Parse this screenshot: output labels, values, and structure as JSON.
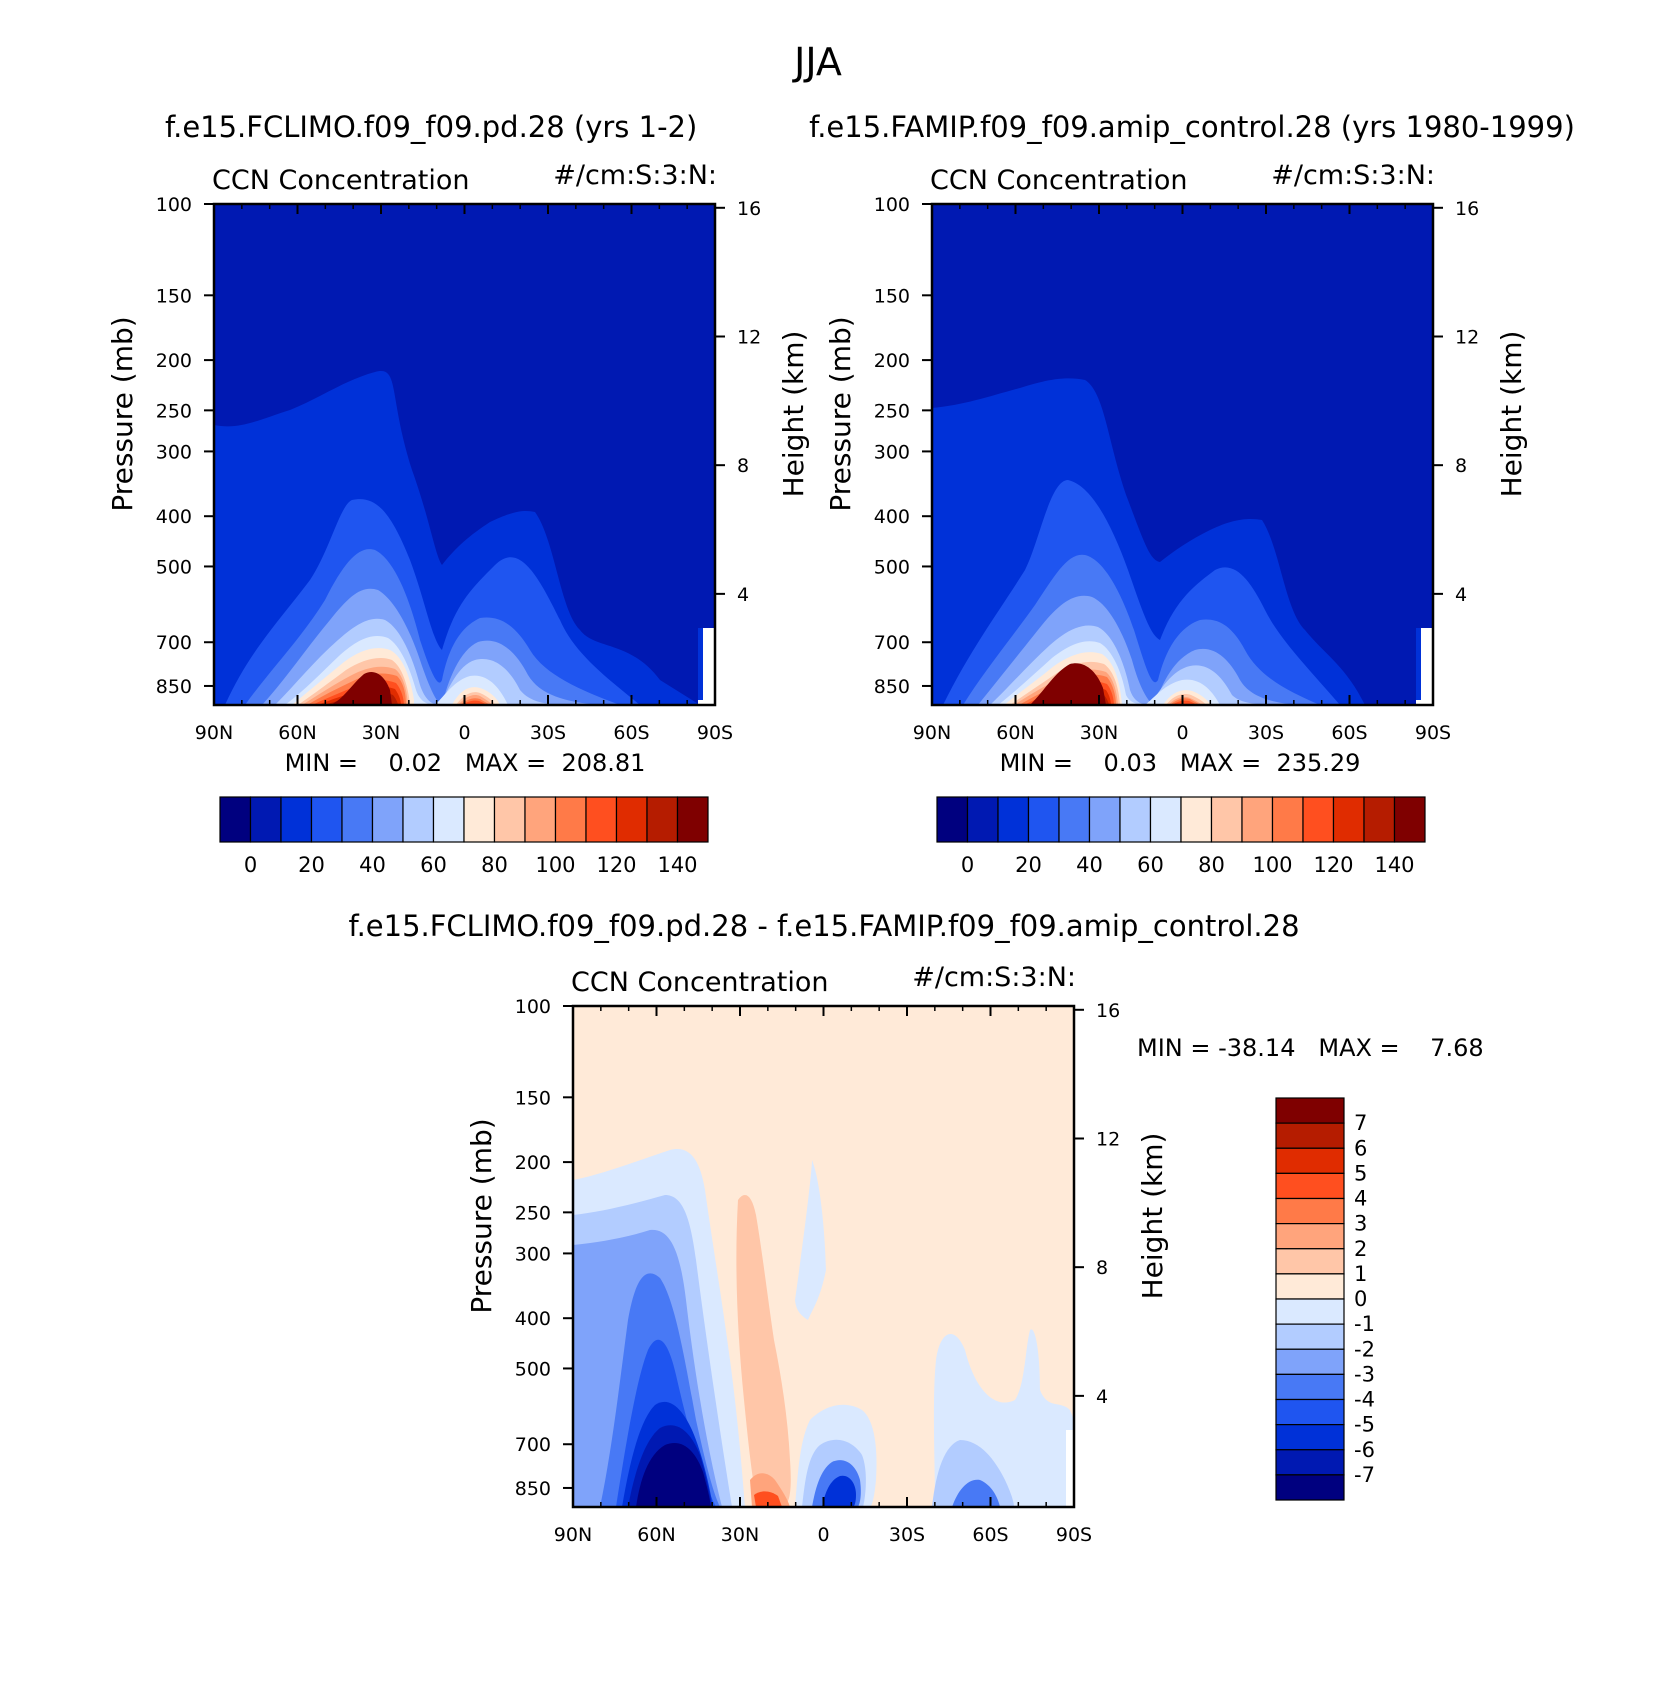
{
  "figure": {
    "title": "JJA"
  },
  "chart_data": [
    {
      "type": "contour",
      "id": "model",
      "title": "f.e15.FCLIMO.f09_f09.pd.28 (yrs 1-2)",
      "left_string": "CCN Concentration",
      "right_string": "#/cm:S:3:N:",
      "xlabel": "",
      "ylabel": "Pressure (mb)",
      "y2label": "Height (km)",
      "x_ticks": [
        "90N",
        "60N",
        "30N",
        "0",
        "30S",
        "60S",
        "90S"
      ],
      "y_ticks": [
        100,
        150,
        200,
        250,
        300,
        400,
        500,
        700,
        850
      ],
      "y2_ticks": [
        16,
        12,
        8,
        4
      ],
      "stats": "MIN =    0.02   MAX =  208.81",
      "colorbar": {
        "labels": [
          "0",
          "20",
          "40",
          "60",
          "80",
          "100",
          "120",
          "140"
        ],
        "levels": [
          0,
          10,
          20,
          30,
          40,
          50,
          60,
          70,
          80,
          90,
          100,
          110,
          120,
          130,
          140
        ],
        "colors": [
          "#00007f",
          "#0019b2",
          "#0031d8",
          "#1f55f0",
          "#4879f5",
          "#7fa3fa",
          "#b2ccff",
          "#dae9ff",
          "#ffead8",
          "#ffc6a8",
          "#ffa47c",
          "#ff7a48",
          "#ff4f1f",
          "#e02c00",
          "#b51c00",
          "#7f0000"
        ]
      }
    },
    {
      "type": "contour",
      "id": "control",
      "title": "f.e15.FAMIP.f09_f09.amip_control.28 (yrs 1980-1999)",
      "left_string": "CCN Concentration",
      "right_string": "#/cm:S:3:N:",
      "xlabel": "",
      "ylabel": "Pressure (mb)",
      "y2label": "Height (km)",
      "x_ticks": [
        "90N",
        "60N",
        "30N",
        "0",
        "30S",
        "60S",
        "90S"
      ],
      "y_ticks": [
        100,
        150,
        200,
        250,
        300,
        400,
        500,
        700,
        850
      ],
      "y2_ticks": [
        16,
        12,
        8,
        4
      ],
      "stats": "MIN =    0.03   MAX =  235.29",
      "colorbar": {
        "labels": [
          "0",
          "20",
          "40",
          "60",
          "80",
          "100",
          "120",
          "140"
        ],
        "levels": [
          0,
          10,
          20,
          30,
          40,
          50,
          60,
          70,
          80,
          90,
          100,
          110,
          120,
          130,
          140
        ],
        "colors": [
          "#00007f",
          "#0019b2",
          "#0031d8",
          "#1f55f0",
          "#4879f5",
          "#7fa3fa",
          "#b2ccff",
          "#dae9ff",
          "#ffead8",
          "#ffc6a8",
          "#ffa47c",
          "#ff7a48",
          "#ff4f1f",
          "#e02c00",
          "#b51c00",
          "#7f0000"
        ]
      }
    },
    {
      "type": "contour",
      "id": "difference",
      "title": "f.e15.FCLIMO.f09_f09.pd.28 - f.e15.FAMIP.f09_f09.amip_control.28",
      "left_string": "CCN Concentration",
      "right_string": "#/cm:S:3:N:",
      "xlabel": "",
      "ylabel": "Pressure (mb)",
      "y2label": "Height (km)",
      "x_ticks": [
        "90N",
        "60N",
        "30N",
        "0",
        "30S",
        "60S",
        "90S"
      ],
      "y_ticks": [
        100,
        150,
        200,
        250,
        300,
        400,
        500,
        700,
        850
      ],
      "y2_ticks": [
        16,
        12,
        8,
        4
      ],
      "stats": "MIN = -38.14   MAX =    7.68",
      "colorbar": {
        "labels": [
          "7",
          "6",
          "5",
          "4",
          "3",
          "2",
          "1",
          "0",
          "-1",
          "-2",
          "-3",
          "-4",
          "-5",
          "-6",
          "-7"
        ],
        "colors_top_to_bottom": [
          "#7f0000",
          "#b51c00",
          "#e02c00",
          "#ff4f1f",
          "#ff7a48",
          "#ffa47c",
          "#ffc6a8",
          "#ffead8",
          "#dae9ff",
          "#b2ccff",
          "#7fa3fa",
          "#4879f5",
          "#1f55f0",
          "#0031d8",
          "#0019b2",
          "#00007f"
        ]
      }
    }
  ]
}
